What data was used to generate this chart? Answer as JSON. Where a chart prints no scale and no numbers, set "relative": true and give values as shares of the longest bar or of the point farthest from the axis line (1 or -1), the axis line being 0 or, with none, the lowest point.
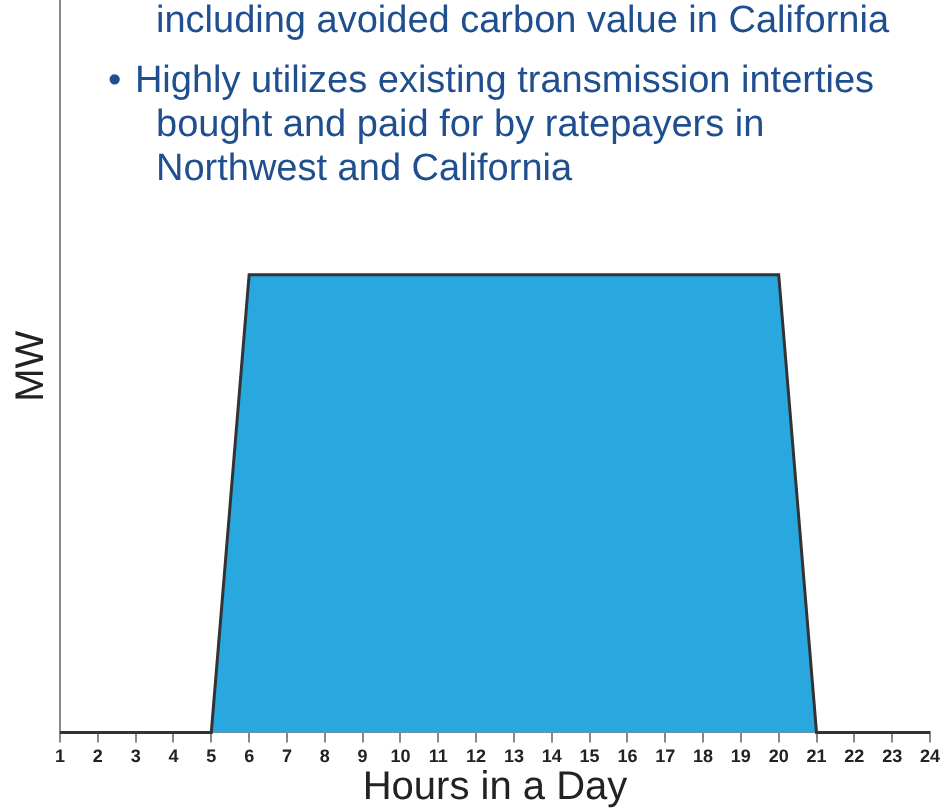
{
  "chart_data": {
    "type": "area",
    "relative": true,
    "xlabel": "Hours in a Day",
    "ylabel": "MW",
    "annotations": [
      "including avoided carbon value in California",
      "•\tHighly utilizes existing transmission interties bought and paid for by ratepayers in Northwest and California"
    ],
    "x": [
      1,
      2,
      3,
      4,
      5,
      6,
      7,
      8,
      9,
      10,
      11,
      12,
      13,
      14,
      15,
      16,
      17,
      18,
      19,
      20,
      21,
      22,
      23,
      24
    ],
    "xlim": [
      1,
      24
    ],
    "xticks": [
      1,
      2,
      3,
      4,
      5,
      6,
      7,
      8,
      9,
      10,
      11,
      12,
      13,
      14,
      15,
      16,
      17,
      18,
      19,
      20,
      21,
      22,
      23,
      24
    ],
    "series": [
      {
        "color": "#29a8e0",
        "values": [
          0,
          0,
          0,
          0,
          0,
          1,
          1,
          1,
          1,
          1,
          1,
          1,
          1,
          1,
          1,
          1,
          1,
          1,
          1,
          1,
          0,
          0,
          0,
          0
        ]
      }
    ],
    "grid": false,
    "legend": false,
    "marker": "none"
  }
}
